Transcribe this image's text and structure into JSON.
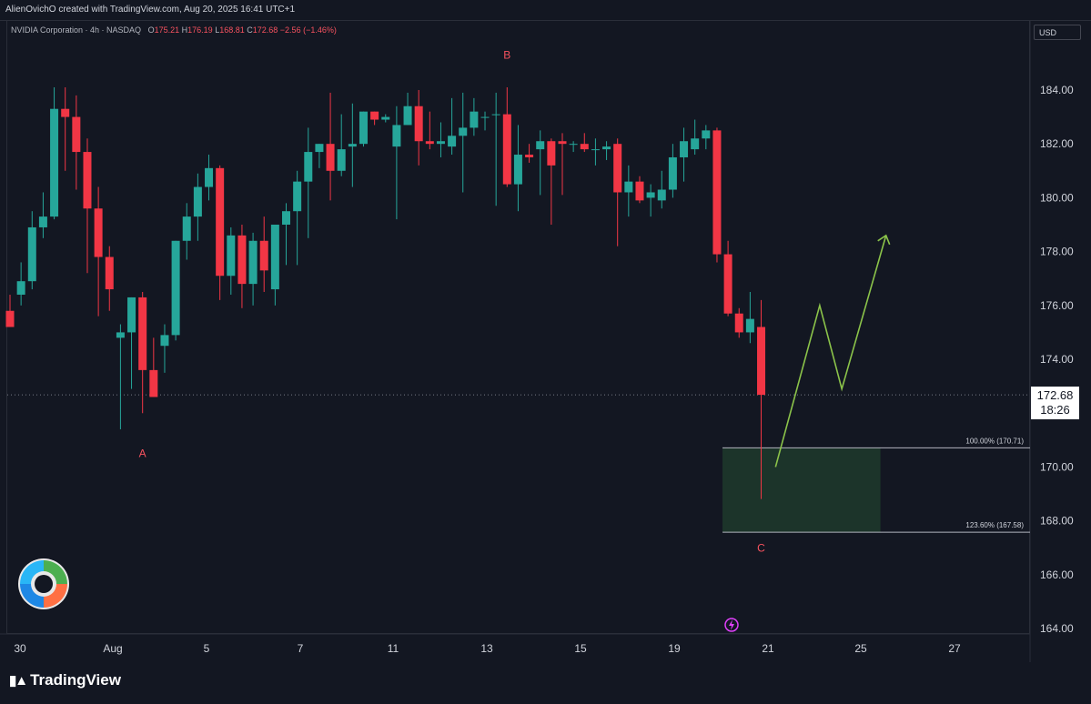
{
  "header": {
    "attribution": "AlienOvichO created with TradingView.com, Aug 20, 2025 16:41 UTC+1"
  },
  "legend": {
    "symbol": "NVIDIA Corporation · 4h · NASDAQ",
    "o_label": "O",
    "o": "175.21",
    "h_label": "H",
    "h": "176.19",
    "l_label": "L",
    "l": "168.81",
    "c_label": "C",
    "c": "172.68",
    "change": "−2.56 (−1.46%)"
  },
  "currency": "USD",
  "current_price": {
    "value": "172.68",
    "countdown": "18:26"
  },
  "brand": "TradingView",
  "colors": {
    "up": "#26a69a",
    "down": "#f23645",
    "projection": "#8bc34a",
    "zone": "#1e3a2c",
    "label": "#f7525f"
  },
  "chart_data": {
    "type": "candlestick",
    "ylim": [
      163.8,
      186.6
    ],
    "yticks": [
      "184.00",
      "182.00",
      "180.00",
      "178.00",
      "176.00",
      "174.00",
      "170.00",
      "168.00",
      "166.00",
      "164.00"
    ],
    "xticks": [
      "30",
      "Aug",
      "5",
      "7",
      "11",
      "13",
      "15",
      "19",
      "21",
      "25",
      "27"
    ],
    "candles": [
      [
        175.8,
        176.4,
        175.2,
        175.2
      ],
      [
        176.4,
        177.6,
        176.0,
        176.9
      ],
      [
        176.9,
        179.5,
        176.6,
        178.9
      ],
      [
        178.9,
        180.2,
        178.5,
        179.3
      ],
      [
        179.3,
        184.1,
        179.2,
        183.3
      ],
      [
        183.3,
        184.1,
        181.0,
        183.0
      ],
      [
        183.0,
        183.8,
        180.3,
        181.7
      ],
      [
        181.7,
        182.2,
        177.2,
        179.6
      ],
      [
        179.6,
        180.4,
        175.6,
        177.8
      ],
      [
        177.8,
        178.2,
        175.8,
        176.6
      ],
      [
        174.8,
        175.3,
        171.4,
        175.0
      ],
      [
        175.0,
        176.3,
        172.9,
        176.3
      ],
      [
        176.3,
        176.5,
        172.0,
        173.6
      ],
      [
        173.6,
        174.8,
        172.6,
        172.6
      ],
      [
        174.5,
        175.3,
        173.5,
        174.9
      ],
      [
        174.9,
        178.4,
        174.7,
        178.4
      ],
      [
        178.4,
        179.8,
        177.7,
        179.3
      ],
      [
        179.3,
        180.9,
        178.4,
        180.4
      ],
      [
        180.4,
        181.6,
        179.9,
        181.1
      ],
      [
        181.1,
        181.2,
        176.2,
        177.1
      ],
      [
        177.1,
        178.9,
        176.4,
        178.6
      ],
      [
        178.6,
        179.0,
        175.9,
        176.8
      ],
      [
        176.8,
        178.7,
        176.0,
        178.4
      ],
      [
        178.4,
        179.3,
        176.5,
        177.3
      ],
      [
        176.6,
        179.0,
        176.0,
        179.0
      ],
      [
        179.0,
        179.8,
        177.5,
        179.5
      ],
      [
        179.5,
        181.0,
        177.5,
        180.6
      ],
      [
        180.6,
        182.6,
        178.5,
        181.7
      ],
      [
        181.7,
        182.0,
        181.1,
        182.0
      ],
      [
        182.0,
        183.9,
        179.9,
        181.0
      ],
      [
        181.0,
        183.1,
        180.8,
        181.8
      ],
      [
        181.9,
        183.5,
        180.4,
        182.0
      ],
      [
        182.0,
        183.2,
        181.9,
        183.2
      ],
      [
        183.2,
        183.2,
        182.7,
        182.9
      ],
      [
        182.9,
        183.1,
        182.8,
        183.0
      ],
      [
        181.9,
        183.4,
        179.2,
        182.7
      ],
      [
        182.7,
        183.9,
        182.7,
        183.4
      ],
      [
        183.4,
        184.0,
        181.2,
        182.1
      ],
      [
        182.1,
        183.2,
        181.8,
        182.0
      ],
      [
        182.0,
        182.8,
        181.5,
        182.1
      ],
      [
        181.9,
        183.7,
        181.6,
        182.3
      ],
      [
        182.3,
        183.9,
        180.2,
        182.6
      ],
      [
        182.6,
        183.7,
        182.3,
        183.2
      ],
      [
        183.0,
        183.2,
        182.5,
        183.0
      ],
      [
        183.1,
        183.9,
        179.7,
        183.1
      ],
      [
        183.1,
        184.1,
        180.4,
        180.5
      ],
      [
        180.5,
        182.7,
        179.5,
        181.6
      ],
      [
        181.6,
        182.0,
        181.3,
        181.5
      ],
      [
        181.8,
        182.5,
        180.1,
        182.1
      ],
      [
        182.1,
        182.2,
        179.0,
        181.2
      ],
      [
        182.1,
        182.4,
        180.1,
        182.0
      ],
      [
        182.0,
        182.1,
        181.7,
        182.0
      ],
      [
        182.0,
        182.4,
        181.7,
        181.8
      ],
      [
        181.8,
        182.2,
        181.2,
        181.8
      ],
      [
        181.8,
        182.1,
        181.4,
        181.9
      ],
      [
        182.0,
        182.2,
        178.2,
        180.2
      ],
      [
        180.2,
        181.2,
        179.3,
        180.6
      ],
      [
        180.6,
        180.8,
        179.8,
        179.9
      ],
      [
        180.0,
        180.5,
        179.3,
        180.2
      ],
      [
        179.9,
        181.0,
        179.6,
        180.3
      ],
      [
        180.3,
        182.0,
        180.0,
        181.5
      ],
      [
        181.5,
        182.6,
        180.6,
        182.1
      ],
      [
        181.8,
        182.9,
        181.6,
        182.2
      ],
      [
        182.2,
        182.7,
        181.8,
        182.5
      ],
      [
        182.5,
        182.6,
        177.6,
        177.9
      ],
      [
        177.9,
        178.4,
        175.6,
        175.7
      ],
      [
        175.7,
        175.9,
        174.8,
        175.0
      ],
      [
        175.0,
        176.5,
        174.6,
        175.5
      ],
      [
        175.2,
        176.2,
        168.81,
        172.68
      ]
    ],
    "annotations": [
      {
        "text": "A",
        "x": 12,
        "price": 170.5
      },
      {
        "text": "B",
        "x": 45,
        "price": 185.3
      },
      {
        "text": "C",
        "x": 68,
        "price": 167.0
      }
    ],
    "fib_levels": [
      {
        "label": "100.00% (170.71)",
        "price": 170.71
      },
      {
        "label": "123.60% (167.58)",
        "price": 167.58
      }
    ],
    "zone": {
      "x_start": 64.5,
      "x_end": 78.8,
      "top": 170.71,
      "bottom": 167.58
    },
    "projection_path": [
      [
        69.3,
        170.0
      ],
      [
        73.3,
        176.0
      ],
      [
        75.3,
        172.9
      ],
      [
        79.3,
        178.6
      ]
    ],
    "current_price": 172.68
  }
}
